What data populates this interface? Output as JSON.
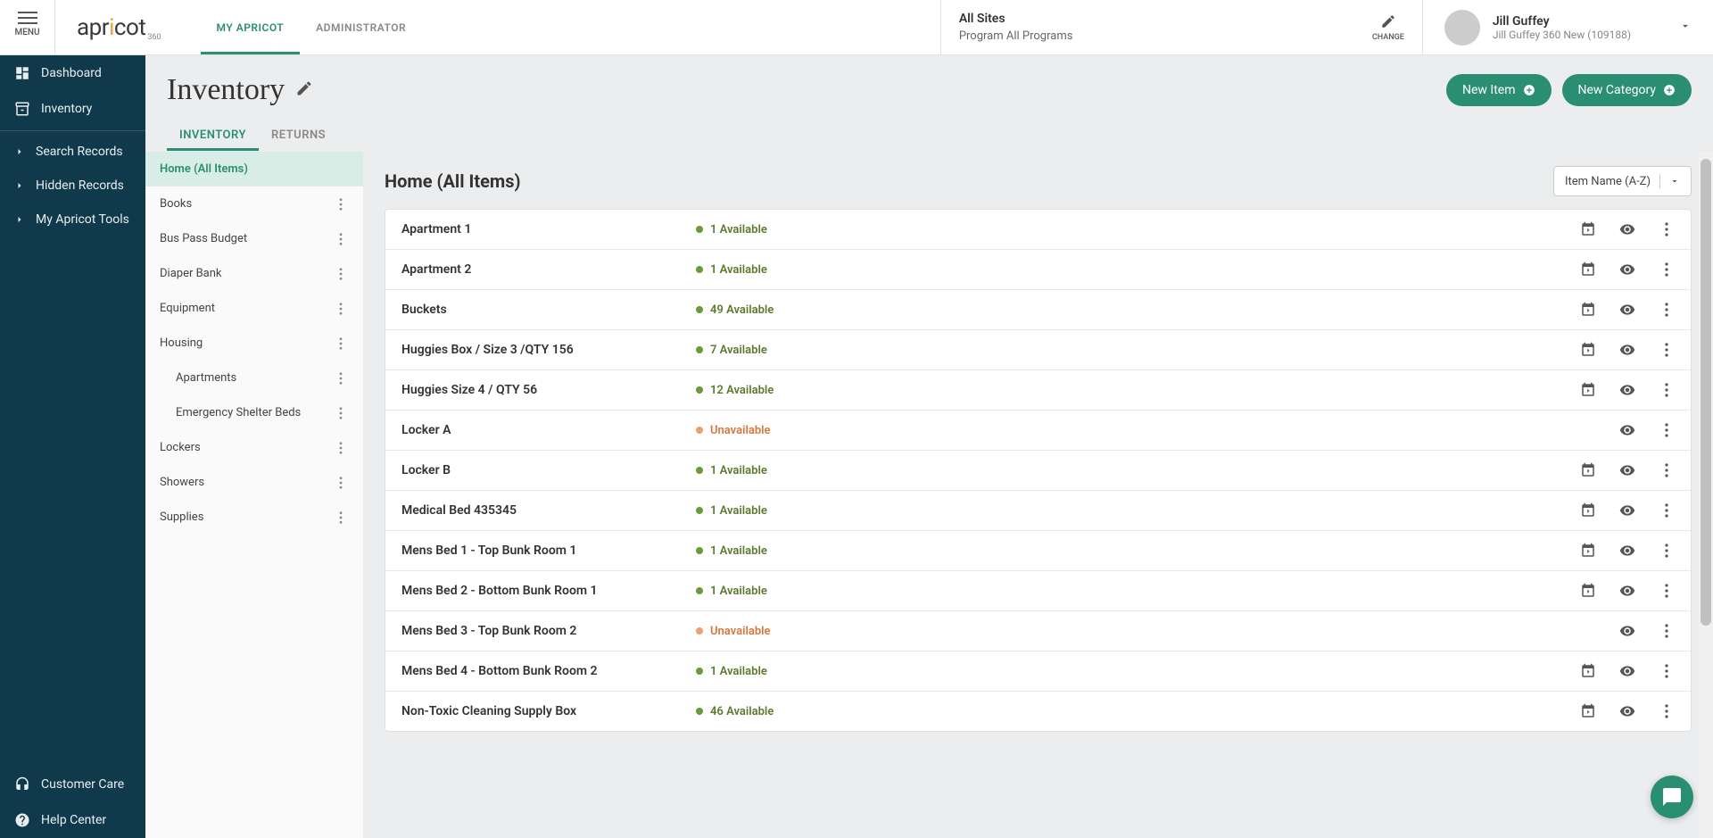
{
  "menu_label": "MENU",
  "logo": {
    "main": "apr",
    "dot": "i",
    "rest": "cot",
    "sub": "360"
  },
  "top_tabs": [
    {
      "label": "MY APRICOT",
      "active": true
    },
    {
      "label": "ADMINISTRATOR",
      "active": false
    }
  ],
  "site": {
    "title": "All Sites",
    "sub": "Program All Programs",
    "change": "CHANGE"
  },
  "user": {
    "name": "Jill Guffey",
    "detail": "Jill Guffey 360 New (109188)"
  },
  "sidebar": {
    "top": [
      {
        "label": "Dashboard",
        "icon": "dashboard"
      },
      {
        "label": "Inventory",
        "icon": "inventory"
      }
    ],
    "mid": [
      {
        "label": "Search Records"
      },
      {
        "label": "Hidden Records"
      },
      {
        "label": "My Apricot Tools"
      }
    ],
    "bottom": [
      {
        "label": "Customer Care",
        "icon": "headset"
      },
      {
        "label": "Help Center",
        "icon": "help"
      }
    ]
  },
  "page_title": "Inventory",
  "actions": {
    "new_item": "New Item",
    "new_category": "New Category"
  },
  "page_tabs": [
    {
      "label": "INVENTORY",
      "active": true
    },
    {
      "label": "RETURNS",
      "active": false
    }
  ],
  "categories": [
    {
      "label": "Home (All Items)",
      "active": true,
      "more": false
    },
    {
      "label": "Books",
      "more": true
    },
    {
      "label": "Bus Pass Budget",
      "more": true
    },
    {
      "label": "Diaper Bank",
      "more": true
    },
    {
      "label": "Equipment",
      "more": true
    },
    {
      "label": "Housing",
      "more": true
    },
    {
      "label": "Apartments",
      "sub": true,
      "more": true
    },
    {
      "label": "Emergency Shelter Beds",
      "sub": true,
      "more": true
    },
    {
      "label": "Lockers",
      "more": true
    },
    {
      "label": "Showers",
      "more": true
    },
    {
      "label": "Supplies",
      "more": true
    }
  ],
  "inv_header": "Home (All Items)",
  "sort_label": "Item Name (A-Z)",
  "items": [
    {
      "name": "Apartment 1",
      "status": "1 Available",
      "avail": true,
      "cal": true
    },
    {
      "name": "Apartment 2",
      "status": "1 Available",
      "avail": true,
      "cal": true
    },
    {
      "name": "Buckets",
      "status": "49 Available",
      "avail": true,
      "cal": true
    },
    {
      "name": "Huggies Box / Size 3 /QTY 156",
      "status": "7 Available",
      "avail": true,
      "cal": true
    },
    {
      "name": "Huggies Size 4 / QTY 56",
      "status": "12 Available",
      "avail": true,
      "cal": true
    },
    {
      "name": "Locker A",
      "status": "Unavailable",
      "avail": false,
      "cal": false
    },
    {
      "name": "Locker B",
      "status": "1 Available",
      "avail": true,
      "cal": true
    },
    {
      "name": "Medical Bed 435345",
      "status": "1 Available",
      "avail": true,
      "cal": true
    },
    {
      "name": "Mens Bed 1 - Top Bunk Room 1",
      "status": "1 Available",
      "avail": true,
      "cal": true
    },
    {
      "name": "Mens Bed 2 - Bottom Bunk Room 1",
      "status": "1 Available",
      "avail": true,
      "cal": true
    },
    {
      "name": "Mens Bed 3 - Top Bunk Room 2",
      "status": "Unavailable",
      "avail": false,
      "cal": false
    },
    {
      "name": "Mens Bed 4 - Bottom Bunk Room 2",
      "status": "1 Available",
      "avail": true,
      "cal": true
    },
    {
      "name": "Non-Toxic Cleaning Supply Box",
      "status": "46 Available",
      "avail": true,
      "cal": true
    }
  ],
  "colors": {
    "accent": "#2a8f72",
    "sidebar": "#103a4c",
    "avail": "#5b7a2e",
    "unavail": "#d8783a"
  }
}
